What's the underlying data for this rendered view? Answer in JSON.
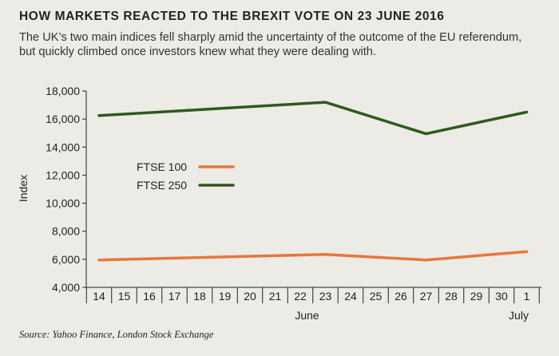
{
  "header": {
    "title": "HOW MARKETS REACTED TO THE BREXIT VOTE ON 23 JUNE 2016",
    "subtitle": "The UK’s two main indices fell sharply amid the uncertainty of the outcome of the EU referendum, but quickly climbed once investors knew what they were dealing with."
  },
  "footer": {
    "source": "Source: Yahoo Finance, London Stock Exchange"
  },
  "chart_data": {
    "type": "line",
    "title": "HOW MARKETS REACTED TO THE BREXIT VOTE ON 23 JUNE 2016",
    "xlabel": "",
    "ylabel": "Index",
    "x": [
      "14",
      "15",
      "16",
      "17",
      "18",
      "19",
      "20",
      "21",
      "22",
      "23",
      "24",
      "25",
      "26",
      "27",
      "28",
      "29",
      "30",
      "1"
    ],
    "month_labels": [
      {
        "label": "June",
        "under": "23"
      },
      {
        "label": "July",
        "under": "1"
      }
    ],
    "ylim": [
      4000,
      18000
    ],
    "yticks": [
      4000,
      6000,
      8000,
      10000,
      12000,
      14000,
      16000,
      18000
    ],
    "ytick_labels": [
      "4,000",
      "6,000",
      "8,000",
      "10,000",
      "12,000",
      "14,000",
      "16,000",
      "18,000"
    ],
    "legend_position": "left-middle",
    "series": [
      {
        "name": "FTSE 100",
        "color": "#e8763a",
        "points": [
          {
            "x": "14",
            "y": 5950
          },
          {
            "x": "23",
            "y": 6350
          },
          {
            "x": "27",
            "y": 5950
          },
          {
            "x": "1",
            "y": 6550
          }
        ]
      },
      {
        "name": "FTSE 250",
        "color": "#2d5a1b",
        "points": [
          {
            "x": "14",
            "y": 16250
          },
          {
            "x": "23",
            "y": 17200
          },
          {
            "x": "27",
            "y": 14950
          },
          {
            "x": "1",
            "y": 16500
          }
        ]
      }
    ]
  }
}
